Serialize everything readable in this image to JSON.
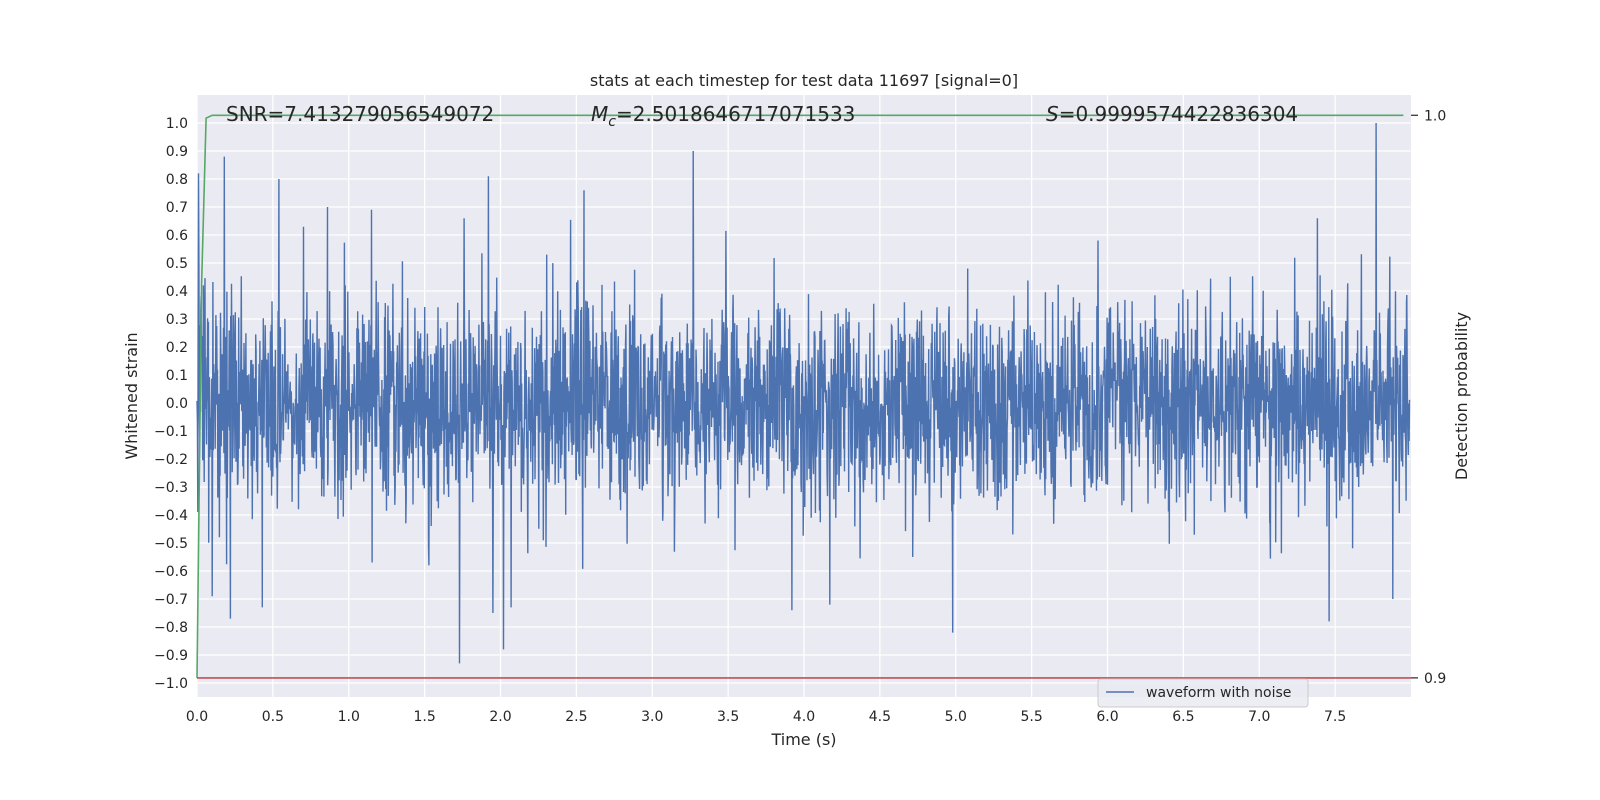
{
  "chart_data": {
    "type": "line",
    "title": "stats at each timestep for test data 11697 [signal=0]",
    "xlabel": "Time (s)",
    "ylabel": "Whitened strain",
    "ylabel_right": "Detection probability",
    "xlim": [
      0.0,
      8.0
    ],
    "ylim": [
      -1.05,
      1.1
    ],
    "ylim_right": [
      0.8966,
      1.0036
    ],
    "x_ticks": [
      "0.0",
      "0.5",
      "1.0",
      "1.5",
      "2.0",
      "2.5",
      "3.0",
      "3.5",
      "4.0",
      "4.5",
      "5.0",
      "5.5",
      "6.0",
      "6.5",
      "7.0",
      "7.5"
    ],
    "y_ticks": [
      "−1.0",
      "−0.9",
      "−0.8",
      "−0.7",
      "−0.6",
      "−0.5",
      "−0.4",
      "−0.3",
      "−0.2",
      "−0.1",
      "0.0",
      "0.1",
      "0.2",
      "0.3",
      "0.4",
      "0.5",
      "0.6",
      "0.7",
      "0.8",
      "0.9",
      "1.0"
    ],
    "y_right_ticks": [
      "0.9",
      "1.0"
    ],
    "grid": true,
    "annotations": {
      "snr": "SNR=7.413279056549072",
      "mc_symbol": "M",
      "mc_sub": "c",
      "mc_value": "=2.5018646717071533",
      "s_symbol": "S",
      "s_value": "=0.9999574422836304"
    },
    "legend": {
      "placement": "lower-right",
      "entries": [
        "waveform with noise"
      ]
    },
    "series": [
      {
        "name": "waveform with noise",
        "color": "#4c72b0",
        "axis": "left",
        "description_note_free": true,
        "sample_rate": 2048,
        "t_end": 7.99,
        "amplitude_envelope": 0.3,
        "peaks": [
          {
            "x": 0.01,
            "y": 0.82
          },
          {
            "x": 0.18,
            "y": 0.88
          },
          {
            "x": 0.54,
            "y": 0.8
          },
          {
            "x": 0.86,
            "y": 0.7
          },
          {
            "x": 1.15,
            "y": 0.69
          },
          {
            "x": 1.92,
            "y": 0.81
          },
          {
            "x": 2.55,
            "y": 0.76
          },
          {
            "x": 3.27,
            "y": 0.9
          },
          {
            "x": 7.77,
            "y": 1.0
          },
          {
            "x": 0.1,
            "y": -0.69
          },
          {
            "x": 0.22,
            "y": -0.77
          },
          {
            "x": 0.43,
            "y": -0.73
          },
          {
            "x": 1.73,
            "y": -0.93
          },
          {
            "x": 1.95,
            "y": -0.75
          },
          {
            "x": 2.02,
            "y": -0.88
          },
          {
            "x": 2.07,
            "y": -0.73
          },
          {
            "x": 3.92,
            "y": -0.74
          },
          {
            "x": 4.17,
            "y": -0.72
          },
          {
            "x": 4.98,
            "y": -0.82
          },
          {
            "x": 7.46,
            "y": -0.78
          },
          {
            "x": 7.88,
            "y": -0.7
          }
        ]
      },
      {
        "name": "",
        "color": "#55a868",
        "axis": "right",
        "x": [
          0.0,
          0.03,
          0.06,
          0.1,
          0.2,
          7.95
        ],
        "values": [
          0.9,
          0.97,
          0.9995,
          1.0,
          1.0,
          1.0
        ]
      },
      {
        "name": "",
        "color": "#c44e52",
        "axis": "right",
        "x": [
          0.0,
          8.0
        ],
        "values": [
          0.9,
          0.9
        ]
      }
    ],
    "colors": {
      "background": "#eaeaf2",
      "grid": "#ffffff"
    }
  }
}
